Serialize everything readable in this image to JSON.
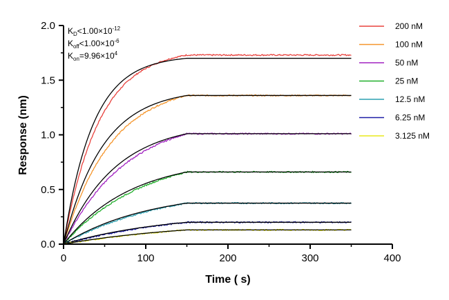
{
  "chart_data": {
    "type": "line",
    "xlabel": "Time ( s)",
    "ylabel": "Response (nm)",
    "xlim": [
      0,
      400
    ],
    "ylim": [
      0,
      2.0
    ],
    "x_ticks": [
      "0",
      "100",
      "200",
      "300",
      "400"
    ],
    "y_ticks": [
      "0.0",
      "0.5",
      "1.0",
      "1.5",
      "2.0"
    ],
    "grid": false,
    "legend_position": "top-right",
    "association_end_s": 150,
    "dissociation_end_s": 350,
    "fit_line_color": "#000000",
    "annotations": [
      {
        "main": "K",
        "sub": "D",
        "rel": "<",
        "value": "1.00×10",
        "exp": "-12"
      },
      {
        "main": "K",
        "sub": "off",
        "rel": "<",
        "value": "1.00×10",
        "exp": "-6"
      },
      {
        "main": "K",
        "sub": "on",
        "rel": "=",
        "value": "9.96×10",
        "exp": "4"
      }
    ],
    "series": [
      {
        "name": "200 nM",
        "color": "#e8413c",
        "plateau": 1.7,
        "data_plateau": 1.73
      },
      {
        "name": "100 nM",
        "color": "#f5952b",
        "plateau": 1.36,
        "data_plateau": 1.36
      },
      {
        "name": "50 nM",
        "color": "#a020c0",
        "plateau": 1.01,
        "data_plateau": 1.01
      },
      {
        "name": "25 nM",
        "color": "#1fae2a",
        "plateau": 0.66,
        "data_plateau": 0.66
      },
      {
        "name": "12.5 nM",
        "color": "#2a9fb0",
        "plateau": 0.375,
        "data_plateau": 0.375
      },
      {
        "name": "6.25 nM",
        "color": "#1a1aa6",
        "plateau": 0.2,
        "data_plateau": 0.2
      },
      {
        "name": "3.125 nM",
        "color": "#e8e81a",
        "plateau": 0.13,
        "data_plateau": 0.13
      }
    ]
  }
}
